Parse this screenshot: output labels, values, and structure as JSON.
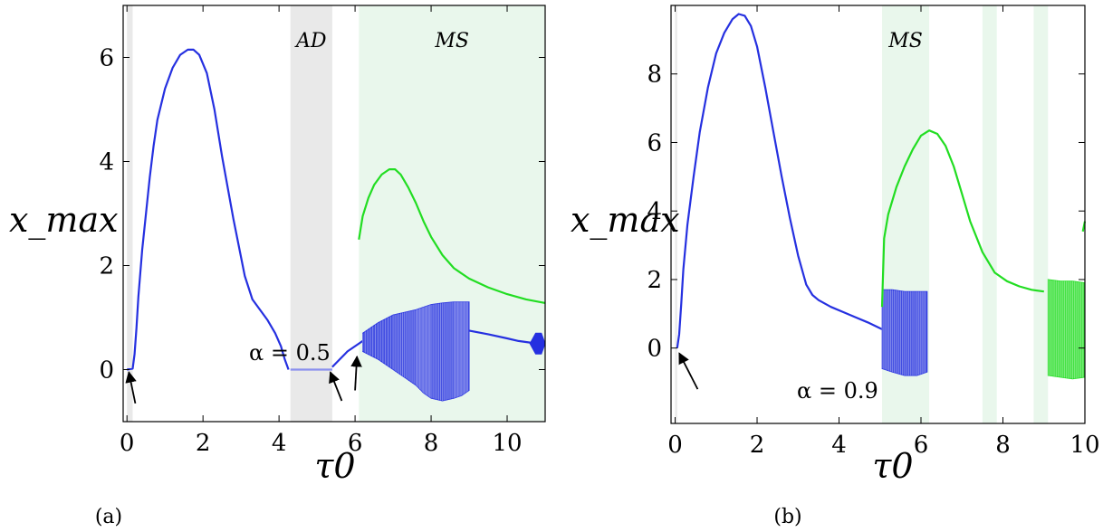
{
  "chart_data": [
    {
      "type": "scatter",
      "panel_label": "(a)",
      "xlabel": "τ0",
      "ylabel": "x_max",
      "xlim": [
        -0.1,
        11
      ],
      "ylim": [
        -1,
        7
      ],
      "xticks": [
        0,
        2,
        4,
        6,
        8,
        10
      ],
      "yticks": [
        0,
        2,
        4,
        6
      ],
      "annotation": "α = 0.5",
      "regions": [
        {
          "label": "",
          "x0": 0.0,
          "x1": 0.15,
          "color": "#e9e9e9"
        },
        {
          "label": "AD",
          "x0": 4.3,
          "x1": 5.4,
          "color": "#e9e9e9"
        },
        {
          "label": "MS",
          "x0": 6.1,
          "x1": 11,
          "color": "#e9f7ec"
        }
      ],
      "arrows": [
        {
          "x": 0.22,
          "y": -0.65,
          "tx": 0.05,
          "ty": -0.05
        },
        {
          "x": 5.65,
          "y": -0.6,
          "tx": 5.35,
          "ty": -0.05
        },
        {
          "x": 6.0,
          "y": -0.4,
          "tx": 6.05,
          "ty": 0.25
        }
      ],
      "series": [
        {
          "name": "",
          "color": "#2530e0",
          "style": "line",
          "x": [
            0.0,
            0.15,
            0.2,
            0.25,
            0.3,
            0.4,
            0.5,
            0.6,
            0.7,
            0.8,
            1.0,
            1.2,
            1.4,
            1.6,
            1.75,
            1.9,
            2.1,
            2.3,
            2.5,
            2.8,
            3.1,
            3.3,
            3.5,
            3.7,
            3.9,
            4.05,
            4.15,
            4.25
          ],
          "y": [
            0.0,
            0.02,
            0.3,
            0.8,
            1.4,
            2.3,
            3.0,
            3.7,
            4.3,
            4.8,
            5.4,
            5.8,
            6.05,
            6.15,
            6.15,
            6.05,
            5.7,
            5.0,
            4.1,
            2.9,
            1.8,
            1.35,
            1.15,
            0.95,
            0.7,
            0.45,
            0.2,
            0.0
          ]
        },
        {
          "name": "",
          "color": "#8a90ee",
          "style": "line",
          "x": [
            4.3,
            5.4
          ],
          "y": [
            0.0,
            0.0
          ]
        },
        {
          "name": "",
          "color": "#2530e0",
          "style": "line",
          "x": [
            5.4,
            5.6,
            5.8,
            6.0,
            6.2
          ],
          "y": [
            0.05,
            0.2,
            0.35,
            0.45,
            0.55
          ]
        },
        {
          "name": "",
          "color": "#2530e0",
          "style": "line",
          "x": [
            9.0,
            9.5,
            10.0,
            10.3,
            10.6,
            11.0
          ],
          "y": [
            0.75,
            0.68,
            0.6,
            0.55,
            0.52,
            0.5
          ]
        },
        {
          "name": "",
          "color": "#2530e0",
          "style": "blob",
          "x": [
            10.6,
            10.75,
            10.9,
            11.0
          ],
          "y": [
            0.5,
            0.7,
            0.7,
            0.5
          ]
        },
        {
          "name": "",
          "color": "#22dd22",
          "style": "line",
          "x": [
            6.1,
            6.2,
            6.35,
            6.5,
            6.7,
            6.9,
            7.05,
            7.2,
            7.4,
            7.6,
            7.8,
            8.0,
            8.3,
            8.6,
            9.0,
            9.5,
            10.0,
            10.5,
            11.0
          ],
          "y": [
            2.5,
            2.95,
            3.3,
            3.55,
            3.75,
            3.85,
            3.85,
            3.75,
            3.5,
            3.2,
            2.85,
            2.55,
            2.2,
            1.95,
            1.75,
            1.58,
            1.45,
            1.35,
            1.28
          ]
        },
        {
          "name": "",
          "color": "#2530e0",
          "style": "band",
          "x": [
            6.2,
            6.6,
            7.0,
            7.3,
            7.6,
            7.8,
            8.0,
            8.3,
            8.6,
            8.8,
            9.0
          ],
          "y_low": [
            0.35,
            0.2,
            0.0,
            -0.15,
            -0.3,
            -0.45,
            -0.55,
            -0.6,
            -0.55,
            -0.5,
            -0.4
          ],
          "y_high": [
            0.7,
            0.9,
            1.05,
            1.1,
            1.15,
            1.2,
            1.25,
            1.28,
            1.3,
            1.3,
            1.3
          ]
        }
      ]
    },
    {
      "type": "scatter",
      "panel_label": "(b)",
      "xlabel": "τ0",
      "ylabel": "x_max",
      "xlim": [
        -0.1,
        10
      ],
      "ylim": [
        -2.2,
        10
      ],
      "xticks": [
        0,
        2,
        4,
        6,
        8,
        10
      ],
      "yticks": [
        0,
        2,
        4,
        6,
        8
      ],
      "annotation": "α = 0.9",
      "regions": [
        {
          "label": "",
          "x0": 0.0,
          "x1": 0.05,
          "color": "#e9e9e9"
        },
        {
          "label": "MS",
          "x0": 5.05,
          "x1": 6.2,
          "color": "#e9f7ec"
        },
        {
          "label": "",
          "x0": 7.5,
          "x1": 7.85,
          "color": "#e9f7ec"
        },
        {
          "label": "",
          "x0": 8.75,
          "x1": 9.1,
          "color": "#e9f7ec"
        }
      ],
      "arrows": [
        {
          "x": 0.55,
          "y": -1.2,
          "tx": 0.1,
          "ty": -0.15
        }
      ],
      "series": [
        {
          "name": "",
          "color": "#2530e0",
          "style": "line",
          "x": [
            0.05,
            0.1,
            0.15,
            0.2,
            0.3,
            0.45,
            0.6,
            0.8,
            1.0,
            1.2,
            1.4,
            1.55,
            1.7,
            1.85,
            2.0,
            2.2,
            2.4,
            2.6,
            2.8,
            3.0,
            3.2,
            3.35,
            3.5,
            3.8,
            4.1,
            4.4,
            4.7,
            5.05
          ],
          "y": [
            0.0,
            0.4,
            1.3,
            2.3,
            3.6,
            5.0,
            6.3,
            7.6,
            8.6,
            9.2,
            9.6,
            9.75,
            9.7,
            9.4,
            8.8,
            7.6,
            6.3,
            5.0,
            3.8,
            2.7,
            1.85,
            1.55,
            1.4,
            1.2,
            1.05,
            0.9,
            0.75,
            0.55
          ]
        },
        {
          "name": "",
          "color": "#2530e0",
          "style": "band",
          "x": [
            5.05,
            5.3,
            5.6,
            5.9,
            6.15
          ],
          "y_low": [
            -0.6,
            -0.7,
            -0.8,
            -0.8,
            -0.7
          ],
          "y_high": [
            1.7,
            1.7,
            1.65,
            1.65,
            1.65
          ]
        },
        {
          "name": "",
          "color": "#22dd22",
          "style": "line",
          "x": [
            5.05,
            5.1,
            5.2,
            5.4,
            5.6,
            5.8,
            6.0,
            6.2,
            6.4,
            6.6,
            6.8,
            7.0,
            7.2,
            7.5,
            7.8,
            8.1,
            8.4,
            8.7,
            9.0
          ],
          "y": [
            1.2,
            3.2,
            3.9,
            4.7,
            5.3,
            5.8,
            6.2,
            6.35,
            6.25,
            5.9,
            5.3,
            4.5,
            3.7,
            2.8,
            2.2,
            1.95,
            1.8,
            1.7,
            1.65
          ]
        },
        {
          "name": "",
          "color": "#22dd22",
          "style": "band",
          "x": [
            9.1,
            9.4,
            9.7,
            10.0
          ],
          "y_low": [
            -0.8,
            -0.85,
            -0.9,
            -0.85
          ],
          "y_high": [
            2.0,
            1.95,
            1.95,
            1.9
          ]
        },
        {
          "name": "",
          "color": "#22dd22",
          "style": "line",
          "x": [
            9.95,
            10.0
          ],
          "y": [
            3.4,
            3.7
          ]
        }
      ]
    }
  ]
}
